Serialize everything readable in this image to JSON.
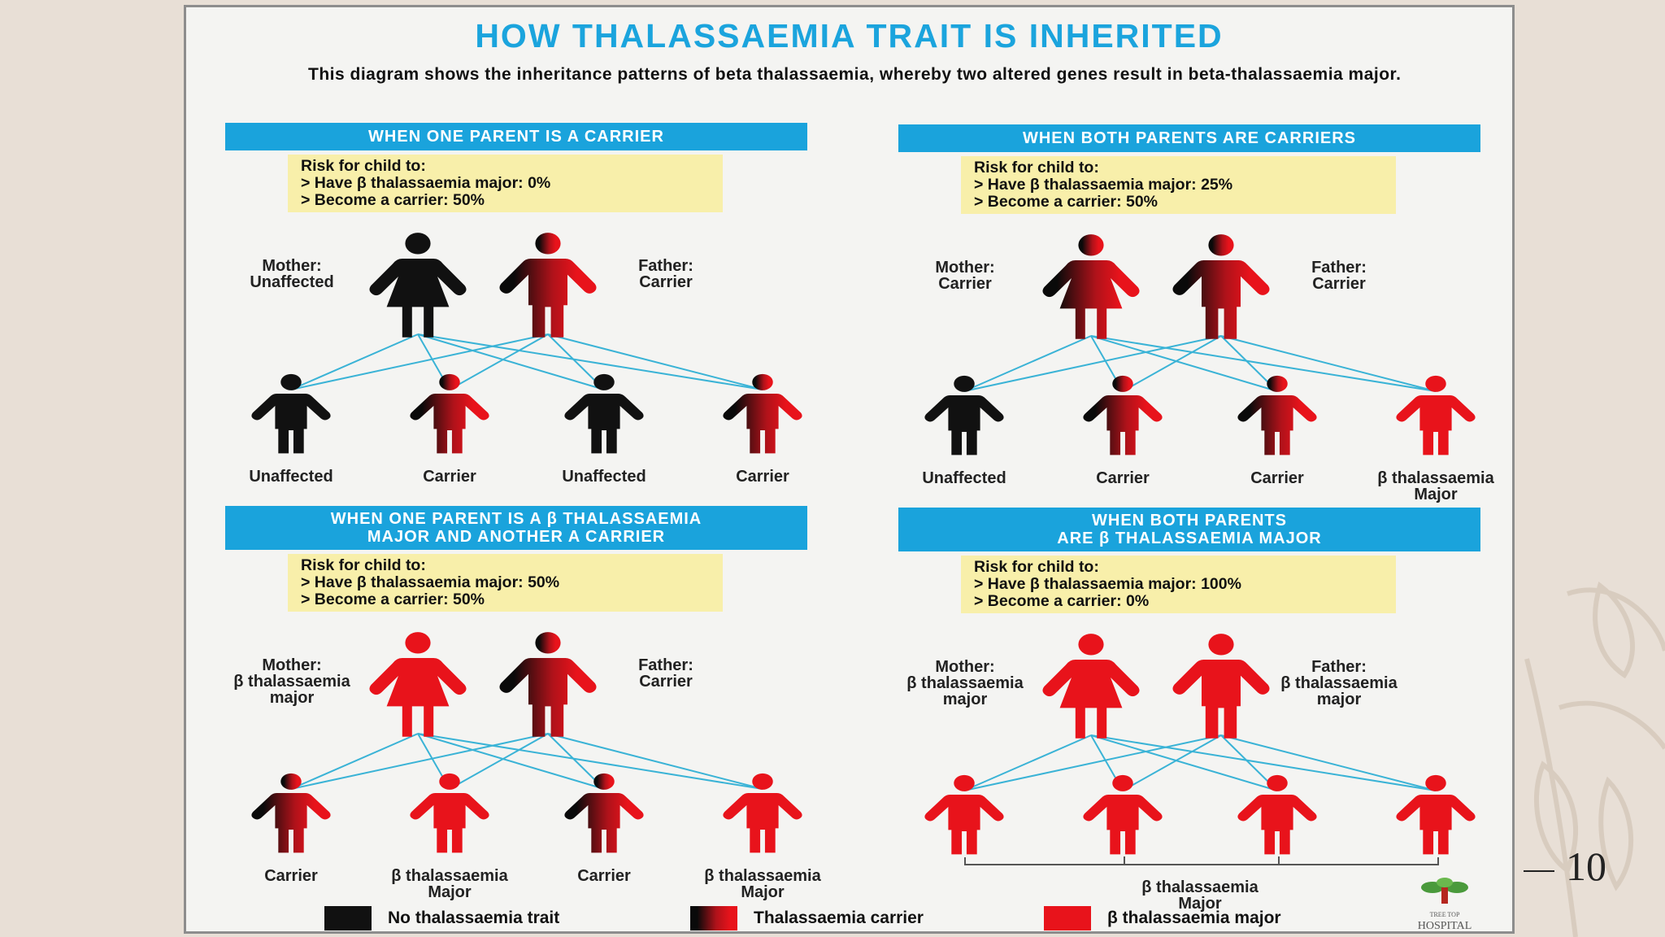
{
  "colors": {
    "accent": "#1aa3dc",
    "risk_bg": "#f8efaa",
    "red": "#e8131b",
    "black": "#111111"
  },
  "page_number": "10",
  "poster": {
    "title": "HOW THALASSAEMIA TRAIT IS INHERITED",
    "subtitle": "This diagram shows the inheritance patterns of beta thalassaemia, whereby two altered genes result in beta-thalassaemia major."
  },
  "quadrants": [
    {
      "header": "WHEN ONE PARENT IS A CARRIER",
      "risk": [
        "Risk for child to:",
        "> Have β thalassaemia major: 0%",
        "> Become a carrier: 50%"
      ],
      "mother": {
        "label": "Mother:\nUnaffected",
        "type": "black"
      },
      "father": {
        "label": "Father:\nCarrier",
        "type": "carrier"
      },
      "children": [
        {
          "label": "Unaffected",
          "type": "black"
        },
        {
          "label": "Carrier",
          "type": "carrier"
        },
        {
          "label": "Unaffected",
          "type": "black"
        },
        {
          "label": "Carrier",
          "type": "carrier"
        }
      ]
    },
    {
      "header": "WHEN BOTH PARENTS ARE CARRIERS",
      "risk": [
        "Risk for child to:",
        "> Have β thalassaemia major: 25%",
        "> Become a carrier: 50%"
      ],
      "mother": {
        "label": "Mother:\nCarrier",
        "type": "carrier"
      },
      "father": {
        "label": "Father:\nCarrier",
        "type": "carrier"
      },
      "children": [
        {
          "label": "Unaffected",
          "type": "black"
        },
        {
          "label": "Carrier",
          "type": "carrier"
        },
        {
          "label": "Carrier",
          "type": "carrier"
        },
        {
          "label": "β thalassaemia\nMajor",
          "type": "red"
        }
      ]
    },
    {
      "header": "WHEN ONE PARENT IS A β THALASSAEMIA\nMAJOR AND ANOTHER A CARRIER",
      "risk": [
        "Risk for child to:",
        "> Have β thalassaemia major: 50%",
        "> Become a carrier: 50%"
      ],
      "mother": {
        "label": "Mother:\nβ thalassaemia\nmajor",
        "type": "red"
      },
      "father": {
        "label": "Father:\nCarrier",
        "type": "carrier"
      },
      "children": [
        {
          "label": "Carrier",
          "type": "carrier"
        },
        {
          "label": "β thalassaemia\nMajor",
          "type": "red"
        },
        {
          "label": "Carrier",
          "type": "carrier"
        },
        {
          "label": "β thalassaemia\nMajor",
          "type": "red"
        }
      ]
    },
    {
      "header": "WHEN BOTH PARENTS\nARE β THALASSAEMIA MAJOR",
      "risk": [
        "Risk for child to:",
        "> Have β thalassaemia major: 100%",
        "> Become a carrier: 0%"
      ],
      "mother": {
        "label": "Mother:\nβ thalassaemia\nmajor",
        "type": "red"
      },
      "father": {
        "label": "Father:\nβ thalassaemia\nmajor",
        "type": "red"
      },
      "children": [
        {
          "label": "",
          "type": "red"
        },
        {
          "label": "",
          "type": "red"
        },
        {
          "label": "",
          "type": "red"
        },
        {
          "label": "",
          "type": "red"
        }
      ],
      "group_label": "β thalassaemia\nMajor"
    }
  ],
  "legend": [
    {
      "label": "No thalassaemia trait",
      "type": "black"
    },
    {
      "label": "Thalassaemia carrier",
      "type": "carrier"
    },
    {
      "label": "β thalassaemia major",
      "type": "red"
    }
  ],
  "logo": {
    "small_text": "TREE TOP",
    "text": "HOSPITAL"
  }
}
